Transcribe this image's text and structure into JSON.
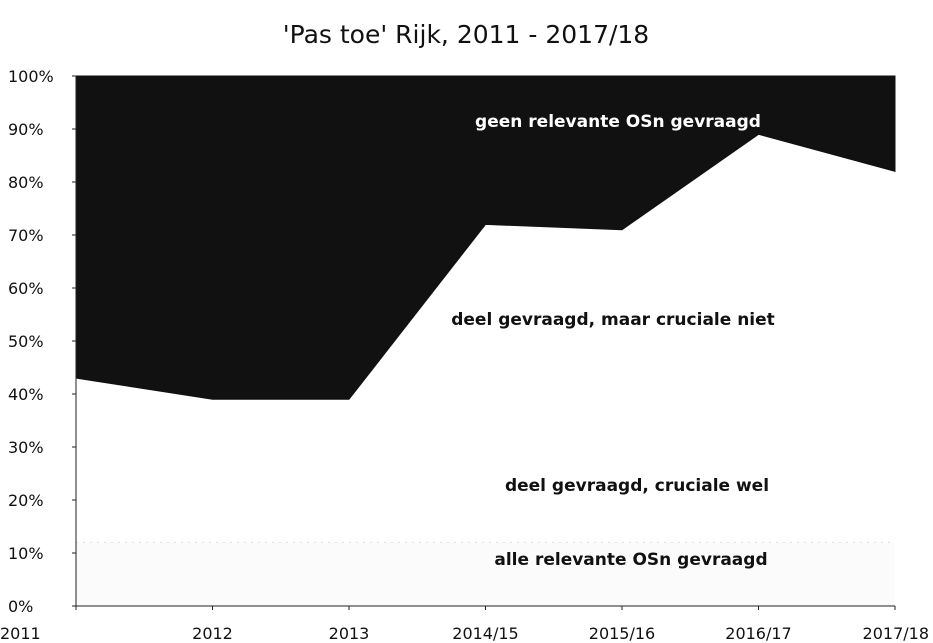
{
  "chart_data": {
    "type": "area",
    "stacked": true,
    "title": "'Pas toe' Rijk, 2011 - 2017/18",
    "xlabel": "",
    "ylabel": "",
    "ylim": [
      0,
      100
    ],
    "ytick_labels": [
      "0%",
      "10%",
      "20%",
      "30%",
      "40%",
      "50%",
      "60%",
      "70%",
      "80%",
      "90%",
      "100%"
    ],
    "categories": [
      "2011",
      "2012",
      "2013",
      "2014/15",
      "2015/16",
      "2016/17",
      "2017/18"
    ],
    "series": [
      {
        "name": "alle relevante OSn gevraagd",
        "values": [
          12,
          12,
          12,
          12,
          12,
          12,
          12
        ]
      },
      {
        "name": "deel gevraagd, cruciale wel",
        "values": [
          31,
          27,
          27,
          60,
          59,
          77,
          70
        ]
      },
      {
        "name": "deel gevraagd, maar cruciale niet",
        "values": [
          0,
          0,
          0,
          0,
          0,
          0,
          0
        ]
      },
      {
        "name": "geen relevante OSn gevraagd",
        "values": [
          57,
          61,
          61,
          28,
          29,
          11,
          18
        ]
      }
    ],
    "grid": false,
    "legend": "none",
    "colors": {
      "top_area": "#111111",
      "lower_area": "#ffffff",
      "bottom_band": "#fbfbfb",
      "axis": "#222222"
    }
  }
}
